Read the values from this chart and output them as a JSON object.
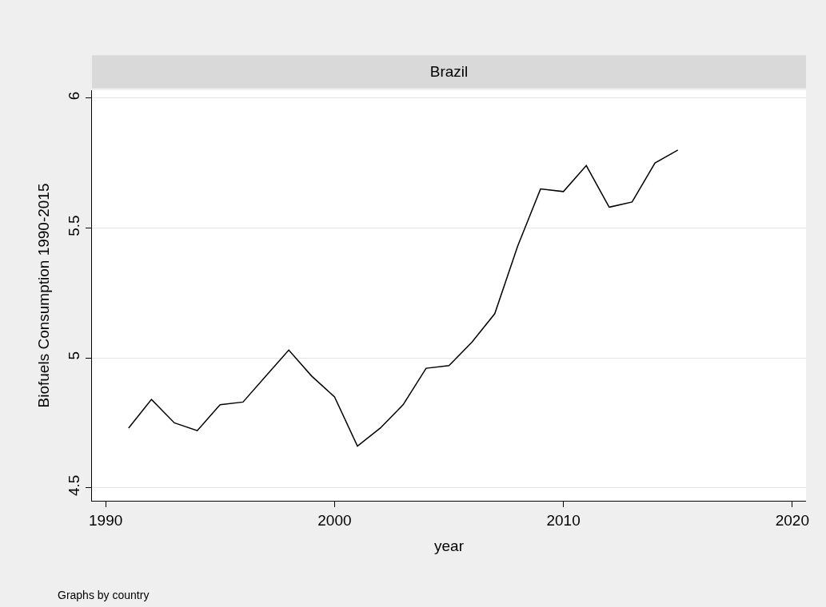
{
  "chart_data": {
    "type": "line",
    "title": "Brazil",
    "xlabel": "year",
    "ylabel": "Biofuels Consumption 1990-2015",
    "annotations": [
      "Graphs by country"
    ],
    "x": [
      1991,
      1992,
      1993,
      1994,
      1995,
      1996,
      1997,
      1998,
      1999,
      2000,
      2001,
      2002,
      2003,
      2004,
      2005,
      2006,
      2007,
      2008,
      2009,
      2010,
      2011,
      2012,
      2013,
      2014,
      2015
    ],
    "series": [
      {
        "color": "#000000",
        "values": [
          4.73,
          4.84,
          4.75,
          4.72,
          4.82,
          4.83,
          4.93,
          5.03,
          4.93,
          4.85,
          4.66,
          4.73,
          4.82,
          4.96,
          4.97,
          5.06,
          5.17,
          5.43,
          5.65,
          5.64,
          5.74,
          5.58,
          5.6,
          5.75,
          5.8
        ]
      }
    ],
    "xlim": [
      1989.4,
      2020.6
    ],
    "xticks": [
      1990,
      2000,
      2010,
      2020
    ],
    "ylim": [
      4.45,
      6.03
    ],
    "yticks": [
      4.5,
      5,
      5.5,
      6
    ],
    "grid": "y",
    "marker": "none",
    "line_style": "solid"
  }
}
